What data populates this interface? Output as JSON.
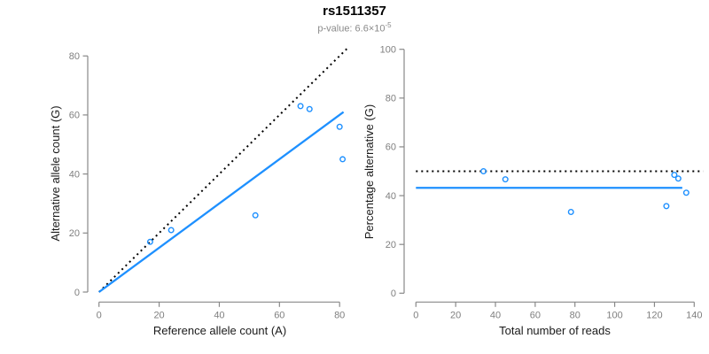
{
  "header": {
    "title": "rs1511357",
    "pvalue_label": "p-value: 6.6×10",
    "pvalue_exponent": "-5"
  },
  "colors": {
    "accent_blue": "#1E90FF",
    "identity_black": "#000000",
    "axis_gray": "#888888",
    "tick_label_gray": "#7f7f7f",
    "axis_title_color": "#1a1a1a",
    "subtitle_gray": "#8a8a8a"
  },
  "chart_data": [
    {
      "id": "allele-counts",
      "type": "scatter",
      "xlabel": "Reference allele count (A)",
      "ylabel": "Alternative allele count (G)",
      "xlim": [
        0,
        80
      ],
      "ylim": [
        0,
        80
      ],
      "xticks": [
        0,
        20,
        40,
        60,
        80
      ],
      "yticks": [
        0,
        20,
        40,
        60,
        80
      ],
      "grid": false,
      "legend": null,
      "marker": "open-circle",
      "points": {
        "x": [
          17,
          24,
          52,
          67,
          70,
          80,
          81
        ],
        "y": [
          17,
          21,
          26,
          63,
          62,
          56,
          45
        ]
      },
      "lines": [
        {
          "name": "identity-line",
          "style": "dotted",
          "color": "#000000",
          "from": [
            0,
            0
          ],
          "to": [
            82.5,
            82.5
          ]
        },
        {
          "name": "fit-line",
          "style": "solid",
          "color": "#1E90FF",
          "from": [
            0,
            0
          ],
          "to": [
            81.3,
            61
          ]
        }
      ]
    },
    {
      "id": "percentage-vs-reads",
      "type": "scatter",
      "xlabel": "Total number of reads",
      "ylabel": "Percentage alternative (G)",
      "xlim": [
        0,
        140
      ],
      "ylim": [
        0,
        100
      ],
      "xticks": [
        0,
        20,
        40,
        60,
        80,
        100,
        120,
        140
      ],
      "yticks": [
        0,
        20,
        40,
        60,
        80,
        100
      ],
      "grid": false,
      "legend": null,
      "marker": "open-circle",
      "points": {
        "x": [
          34,
          45,
          78,
          126,
          130,
          132,
          136
        ],
        "y": [
          50,
          46.7,
          33.3,
          35.7,
          48.5,
          47,
          41.2
        ]
      },
      "lines": [
        {
          "name": "expected-line",
          "style": "dotted",
          "color": "#000000",
          "from": [
            0,
            50
          ],
          "to": [
            144.5,
            50
          ]
        },
        {
          "name": "mean-line",
          "style": "solid",
          "color": "#1E90FF",
          "from": [
            0,
            43.2
          ],
          "to": [
            134,
            43.2
          ]
        }
      ]
    }
  ]
}
